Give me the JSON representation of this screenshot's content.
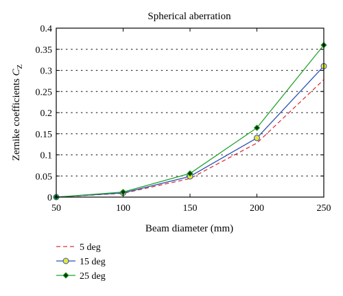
{
  "chart_data": {
    "type": "line",
    "title": "Spherical aberration",
    "xlabel": "Beam diameter (mm)",
    "ylabel_prefix": "Zernike coefficients ",
    "ylabel_symbol": "C",
    "ylabel_subscript": "Z",
    "x": [
      50,
      100,
      150,
      200,
      250
    ],
    "xlim": [
      50,
      250
    ],
    "ylim": [
      0,
      0.4
    ],
    "xticks": [
      "50",
      "100",
      "150",
      "200",
      "250"
    ],
    "yticks": [
      "0",
      "0.05",
      "0.1",
      "0.15",
      "0.2",
      "0.25",
      "0.3",
      "0.35",
      "0.4"
    ],
    "ytick_values": [
      0,
      0.05,
      0.1,
      0.15,
      0.2,
      0.25,
      0.3,
      0.35,
      0.4
    ],
    "grid": "horizontal-dotted",
    "legend_position": "below-left",
    "series": [
      {
        "name": "5 deg",
        "values": [
          0.0,
          0.009,
          0.044,
          0.128,
          0.278
        ],
        "color": "#d9303a",
        "line_style": "dashed",
        "marker": "none"
      },
      {
        "name": "15 deg",
        "values": [
          0.0,
          0.01,
          0.049,
          0.14,
          0.31
        ],
        "color": "#2b4fb3",
        "line_style": "solid",
        "marker": "circle",
        "marker_fill": "#e8e830"
      },
      {
        "name": "25 deg",
        "values": [
          0.0,
          0.012,
          0.056,
          0.164,
          0.36
        ],
        "color": "#22a22a",
        "line_style": "solid",
        "marker": "diamond",
        "marker_fill": "#0b3a0b"
      }
    ]
  }
}
